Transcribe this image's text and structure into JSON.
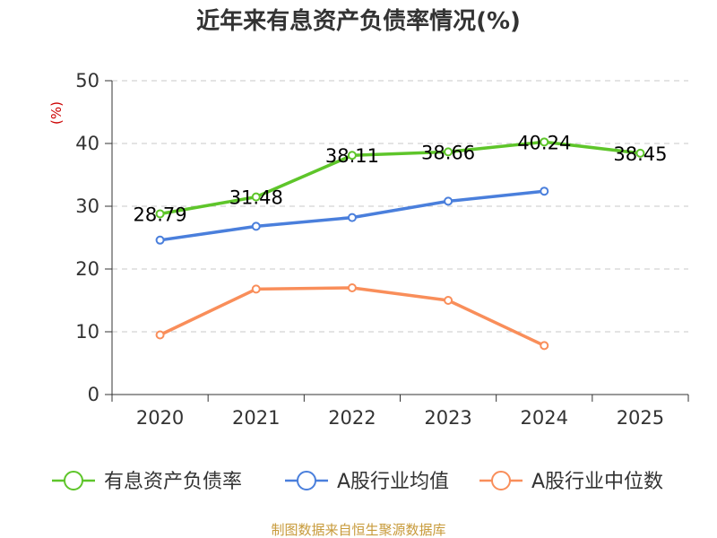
{
  "chart_data": {
    "type": "line",
    "title": "近年来有息资产负债率情况(%)",
    "unit_label": "(%)",
    "categories": [
      "2020",
      "2021",
      "2022",
      "2023",
      "2024",
      "2025"
    ],
    "ylim": [
      0,
      50
    ],
    "y_ticks": [
      0,
      10,
      20,
      30,
      40,
      50
    ],
    "grid": true,
    "legend_position": "bottom",
    "series": [
      {
        "name": "有息资产负债率",
        "color": "#5ec52a",
        "values": [
          28.79,
          31.48,
          38.11,
          38.66,
          40.24,
          38.45
        ],
        "data_labels": [
          "28.79",
          "31.48",
          "38.11",
          "38.66",
          "40.24",
          "38.45"
        ]
      },
      {
        "name": "A股行业均值",
        "color": "#4a7fdc",
        "values": [
          24.6,
          26.8,
          28.2,
          30.8,
          32.4,
          null
        ]
      },
      {
        "name": "A股行业中位数",
        "color": "#f98e5a",
        "values": [
          9.5,
          16.8,
          17.0,
          15.0,
          7.8,
          null
        ]
      }
    ],
    "source": "制图数据来自恒生聚源数据库"
  }
}
